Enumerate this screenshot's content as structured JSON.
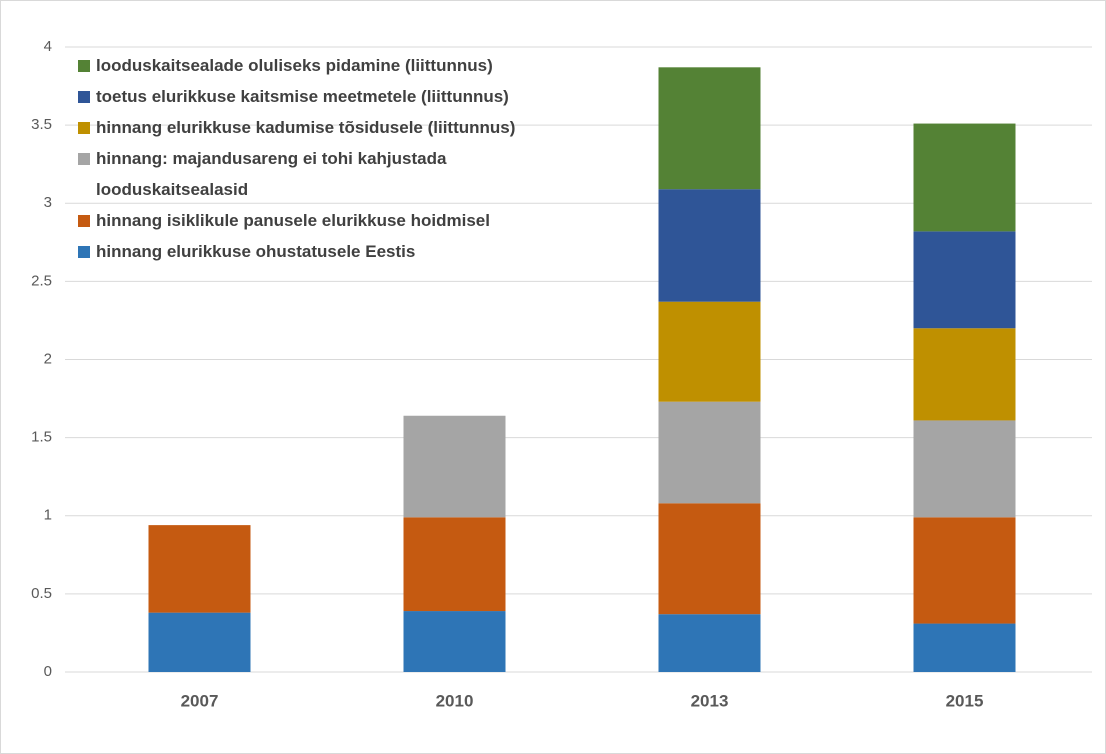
{
  "chart_data": {
    "type": "bar",
    "stacked": true,
    "categories": [
      "2007",
      "2010",
      "2013",
      "2015"
    ],
    "series": [
      {
        "name": "hinnang elurikkuse ohustatusele Eestis",
        "color": "#2e75b6",
        "values": [
          0.38,
          0.39,
          0.37,
          0.31
        ]
      },
      {
        "name": "hinnang isiklikule panusele elurikkuse hoidmisel",
        "color": "#c55a11",
        "values": [
          0.56,
          0.6,
          0.71,
          0.68
        ]
      },
      {
        "name": "hinnang: majandusareng ei tohi kahjustada looduskaitsealasid",
        "color": "#a5a5a5",
        "values": [
          null,
          0.65,
          0.65,
          0.62
        ]
      },
      {
        "name": "hinnang elurikkuse kadumise tõsidusele (liittunnus)",
        "color": "#bf9000",
        "values": [
          null,
          null,
          0.64,
          0.59
        ]
      },
      {
        "name": "toetus elurikkuse kaitsmise meetmetele (liittunnus)",
        "color": "#2f5597",
        "values": [
          null,
          null,
          0.72,
          0.62
        ]
      },
      {
        "name": "looduskaitsealade oluliseks pidamine (liittunnus)",
        "color": "#548235",
        "values": [
          null,
          null,
          0.78,
          0.69
        ]
      }
    ],
    "ylim": [
      0,
      4
    ],
    "yticks": [
      0,
      0.5,
      1,
      1.5,
      2,
      2.5,
      3,
      3.5,
      4
    ],
    "grid": true
  }
}
